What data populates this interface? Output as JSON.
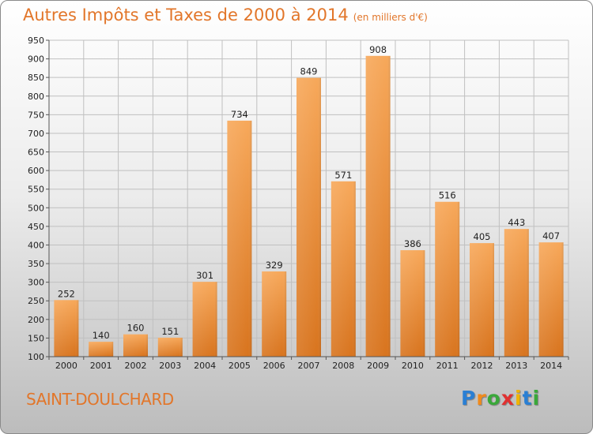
{
  "title": "Autres Impôts et Taxes de 2000 à 2014",
  "unit": "(en milliers d'€)",
  "city": "SAINT-DOULCHARD",
  "logo": {
    "letters": [
      "P",
      "r",
      "o",
      "x",
      "i",
      "t",
      "i"
    ],
    "colors": [
      "#2a7fd4",
      "#f08a1c",
      "#3aa83a",
      "#e03030",
      "#f0b400",
      "#2a7fd4",
      "#3aa83a"
    ]
  },
  "colors": {
    "accent": "#e2762a",
    "bar_light": "#f7a85a",
    "bar_dark": "#d8741e",
    "grid": "#c0c0c0"
  },
  "chart_data": {
    "type": "bar",
    "title": "Autres Impôts et Taxes de 2000 à 2014",
    "ylabel": "",
    "xlabel": "",
    "categories": [
      "2000",
      "2001",
      "2002",
      "2003",
      "2004",
      "2005",
      "2006",
      "2007",
      "2008",
      "2009",
      "2010",
      "2011",
      "2012",
      "2013",
      "2014"
    ],
    "values": [
      252,
      140,
      160,
      151,
      301,
      734,
      329,
      849,
      571,
      908,
      386,
      516,
      405,
      443,
      407
    ],
    "ylim": [
      100,
      950
    ],
    "yticks": [
      100,
      150,
      200,
      250,
      300,
      350,
      400,
      450,
      500,
      550,
      600,
      650,
      700,
      750,
      800,
      850,
      900,
      950
    ],
    "grid": true,
    "data_labels": true
  }
}
